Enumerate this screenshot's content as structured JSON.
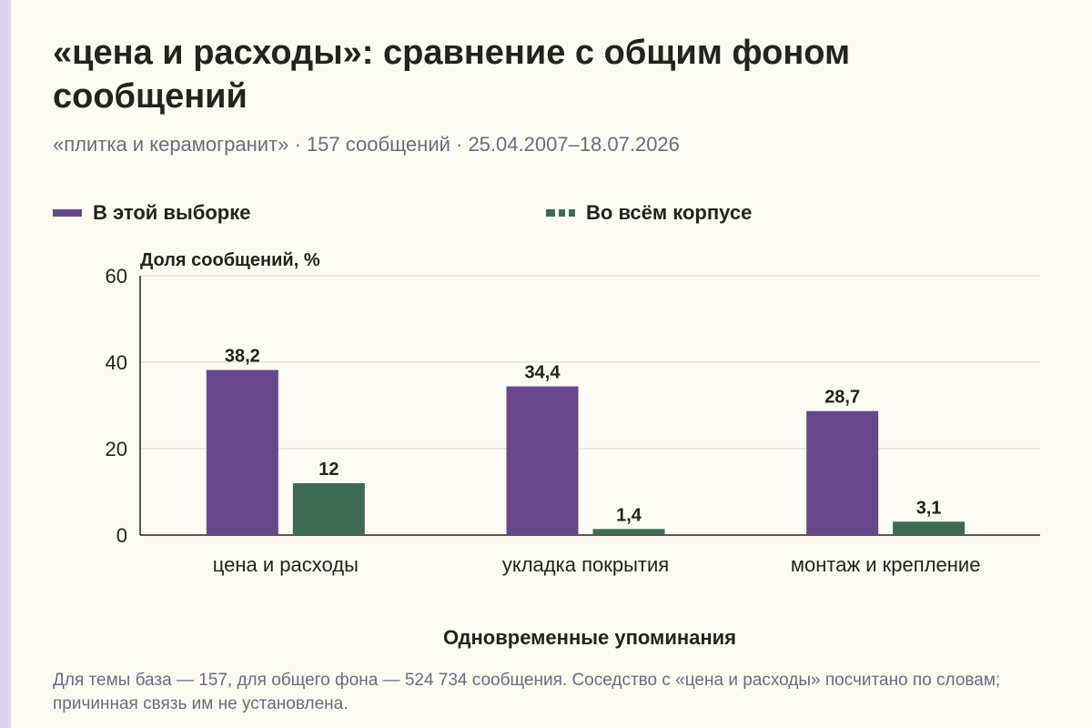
{
  "colors": {
    "accent_strip": "#ddd3ee",
    "sample": "#66488a",
    "corpus": "#3f6b56",
    "grid": "#d9d8d0",
    "axis": "#23231f",
    "text": "#23231f",
    "muted_text": "#6e6a7e",
    "background": "#fdfcf4"
  },
  "header": {
    "title": "«цена и расходы»: сравнение с общим фоном сообщений",
    "subtitle": "«плитка и керамогранит» · 157 сообщений · 25.04.2007–18.07.2026"
  },
  "legend": [
    {
      "label": "В этой выборке",
      "style": "solid",
      "color": "#66488a"
    },
    {
      "label": "Во всём корпусе",
      "style": "dashed",
      "color": "#3f6b56"
    }
  ],
  "chart_data": {
    "type": "bar",
    "title": "«цена и расходы»: сравнение с общим фоном сообщений",
    "subtitle": "«плитка и керамогранит» · 157 сообщений · 25.04.2007–18.07.2026",
    "xlabel": "Одновременные упоминания",
    "ylabel": "Доля сообщений, %",
    "categories": [
      "цена и расходы",
      "укладка покрытия",
      "монтаж и крепление"
    ],
    "series": [
      {
        "name": "В этой выборке",
        "values": [
          38.2,
          34.4,
          28.7
        ],
        "labels": [
          "38,2",
          "34,4",
          "28,7"
        ]
      },
      {
        "name": "Во всём корпусе",
        "values": [
          12,
          1.4,
          3.1
        ],
        "labels": [
          "12",
          "1,4",
          "3,1"
        ]
      }
    ],
    "ylim": [
      0,
      60
    ],
    "yticks": [
      0,
      20,
      40,
      60
    ],
    "grid": true,
    "legend_position": "top-left"
  },
  "footnote": "Для темы база — 157, для общего фона — 524 734 сообщения. Соседство с «цена и расходы» посчитано по словам; причинная связь им не установлена."
}
